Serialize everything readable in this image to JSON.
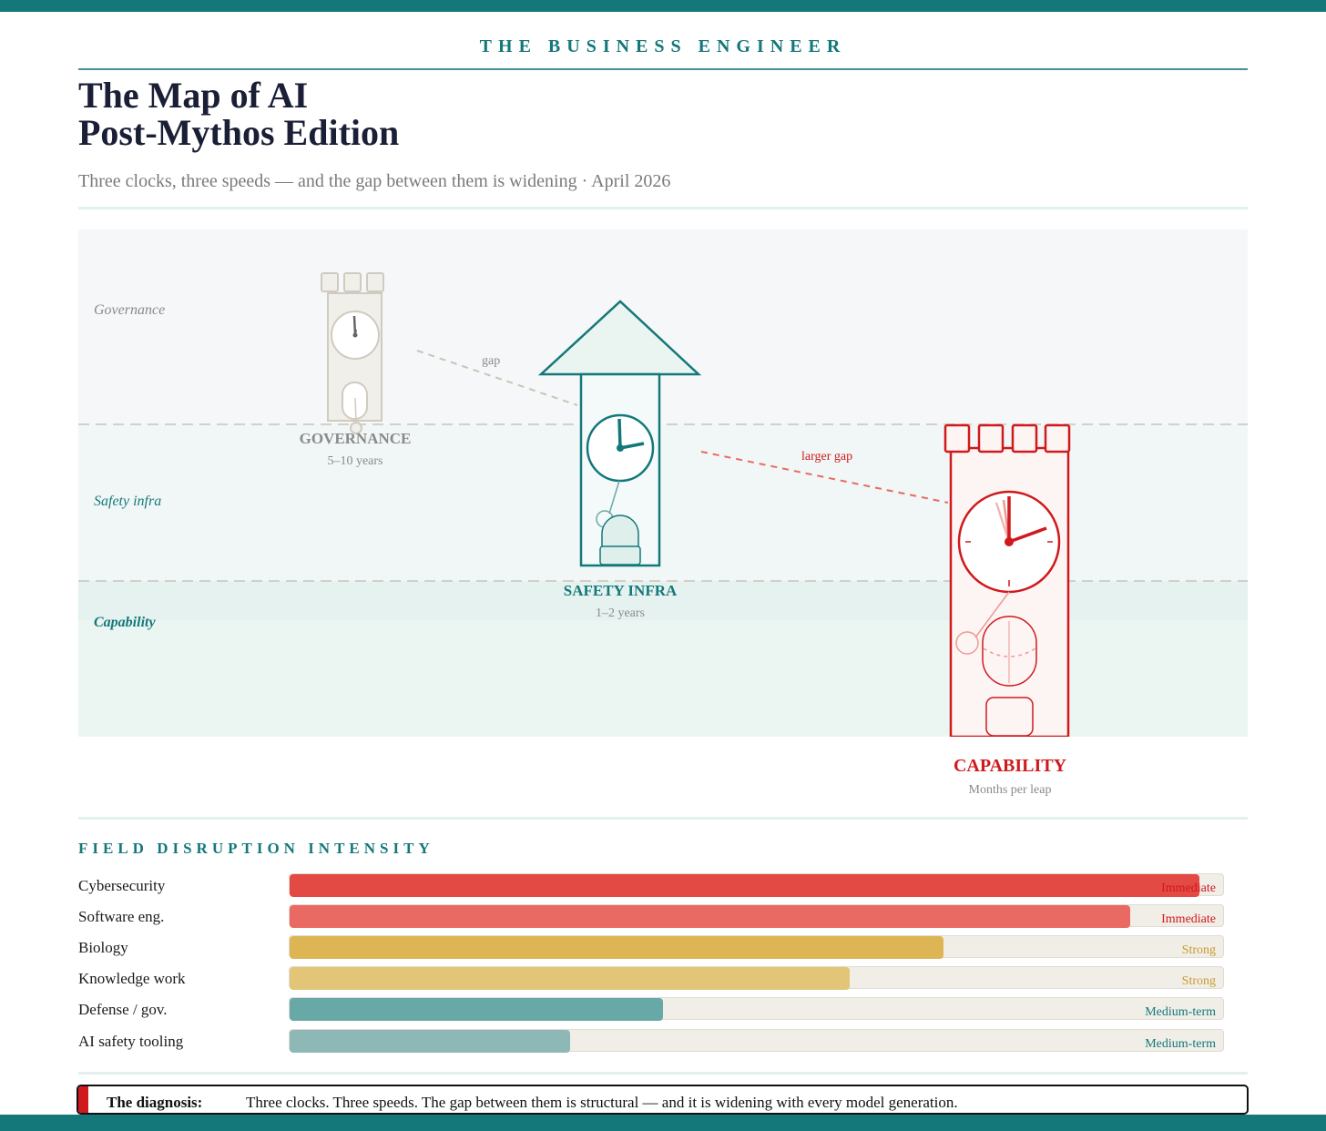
{
  "brand": "THE BUSINESS ENGINEER",
  "title_line1": "The Map of AI",
  "title_line2": "Post-Mythos Edition",
  "subtitle": "Three clocks, three speeds — and the gap between them is widening · April 2026",
  "lanes": {
    "governance": "Governance",
    "safety": "Safety infra",
    "capability": "Capability"
  },
  "clocks": {
    "governance": {
      "name": "GOVERNANCE",
      "timeframe": "5–10 years"
    },
    "safety": {
      "name": "SAFETY INFRA",
      "timeframe": "1–2 years"
    },
    "capability": {
      "name": "CAPABILITY",
      "timeframe": "Months per leap"
    }
  },
  "gaps": {
    "first": "gap",
    "second": "larger gap"
  },
  "colors": {
    "teal": "#14787a",
    "red": "#d0191c",
    "gray": "#c9c4b8"
  },
  "disruption": {
    "title": "FIELD DISRUPTION INTENSITY",
    "rows": [
      {
        "label": "Cybersecurity",
        "tag": "Immediate",
        "level": 0.975,
        "color": "#e34a43",
        "tag_color": "#d0191c"
      },
      {
        "label": "Software eng.",
        "tag": "Immediate",
        "level": 0.9,
        "color": "#e86a62",
        "tag_color": "#d0191c"
      },
      {
        "label": "Biology",
        "tag": "Strong",
        "level": 0.7,
        "color": "#deb554",
        "tag_color": "#c89b2e"
      },
      {
        "label": "Knowledge work",
        "tag": "Strong",
        "level": 0.6,
        "color": "#e2c577",
        "tag_color": "#c89b2e"
      },
      {
        "label": "Defense / gov.",
        "tag": "Medium-term",
        "level": 0.4,
        "color": "#68a8a6",
        "tag_color": "#14787a"
      },
      {
        "label": "AI safety tooling",
        "tag": "Medium-term",
        "level": 0.3,
        "color": "#8eb8b5",
        "tag_color": "#14787a"
      }
    ]
  },
  "diagnosis": {
    "label": "The diagnosis:",
    "text": "Three clocks. Three speeds. The gap between them is structural — and it is widening with every model generation."
  }
}
